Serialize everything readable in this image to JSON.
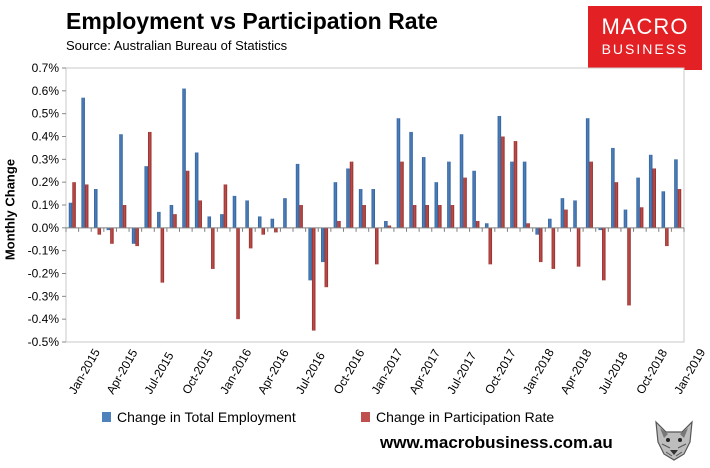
{
  "header": {
    "title": "Employment vs Participation Rate",
    "source": "Source: Australian Bureau of Statistics"
  },
  "logo": {
    "line1": "MACRO",
    "line2": "BUSINESS",
    "color": "#e32024"
  },
  "footer": {
    "url": "www.macrobusiness.com.au"
  },
  "legend": {
    "employment": "Change in Total Employment",
    "participation": "Change in Participation Rate"
  },
  "colors": {
    "employment": "#4f81bd",
    "participation": "#c0504d",
    "plot_border": "#c8c8c8"
  },
  "chart_data": {
    "type": "bar",
    "title": "Employment vs Participation Rate",
    "xlabel": "",
    "ylabel": "Monthly Change",
    "ylim": [
      -0.5,
      0.7
    ],
    "yticks": [
      "0.7%",
      "0.6%",
      "0.5%",
      "0.4%",
      "0.3%",
      "0.2%",
      "0.1%",
      "0.0%",
      "-0.1%",
      "-0.2%",
      "-0.3%",
      "-0.4%",
      "-0.5%"
    ],
    "xtick_labels": [
      "Jan-2015",
      "Apr-2015",
      "Jul-2015",
      "Oct-2015",
      "Jan-2016",
      "Apr-2016",
      "Jul-2016",
      "Oct-2016",
      "Jan-2017",
      "Apr-2017",
      "Jul-2017",
      "Oct-2017",
      "Jan-2018",
      "Apr-2018",
      "Jul-2018",
      "Oct-2018",
      "Jan-2019"
    ],
    "legend_position": "bottom",
    "categories": [
      "Jan-2015",
      "Feb-2015",
      "Mar-2015",
      "Apr-2015",
      "May-2015",
      "Jun-2015",
      "Jul-2015",
      "Aug-2015",
      "Sep-2015",
      "Oct-2015",
      "Nov-2015",
      "Dec-2015",
      "Jan-2016",
      "Feb-2016",
      "Mar-2016",
      "Apr-2016",
      "May-2016",
      "Jun-2016",
      "Jul-2016",
      "Aug-2016",
      "Sep-2016",
      "Oct-2016",
      "Nov-2016",
      "Dec-2016",
      "Jan-2017",
      "Feb-2017",
      "Mar-2017",
      "Apr-2017",
      "May-2017",
      "Jun-2017",
      "Jul-2017",
      "Aug-2017",
      "Sep-2017",
      "Oct-2017",
      "Nov-2017",
      "Dec-2017",
      "Jan-2018",
      "Feb-2018",
      "Mar-2018",
      "Apr-2018",
      "May-2018",
      "Jun-2018",
      "Jul-2018",
      "Aug-2018",
      "Sep-2018",
      "Oct-2018",
      "Nov-2018",
      "Dec-2018",
      "Jan-2019"
    ],
    "series": [
      {
        "name": "Change in Total Employment",
        "values": [
          0.11,
          0.57,
          0.17,
          -0.01,
          0.41,
          -0.07,
          0.27,
          0.07,
          0.1,
          0.61,
          0.33,
          0.05,
          0.06,
          0.14,
          0.12,
          0.05,
          0.04,
          0.13,
          0.28,
          -0.23,
          -0.15,
          0.2,
          0.26,
          0.17,
          0.17,
          0.03,
          0.48,
          0.42,
          0.31,
          0.2,
          0.29,
          0.41,
          0.25,
          0.02,
          0.49,
          0.29,
          0.29,
          -0.03,
          0.04,
          0.13,
          0.12,
          0.48,
          -0.01,
          0.35,
          0.08,
          0.22,
          0.32,
          0.16,
          0.3
        ]
      },
      {
        "name": "Change in Participation Rate",
        "values": [
          0.2,
          0.19,
          -0.03,
          -0.07,
          0.1,
          -0.08,
          0.42,
          -0.24,
          0.06,
          0.25,
          0.12,
          -0.18,
          0.19,
          -0.4,
          -0.09,
          -0.03,
          -0.02,
          0.0,
          0.1,
          -0.45,
          -0.26,
          0.03,
          0.29,
          0.1,
          -0.16,
          0.01,
          0.29,
          0.1,
          0.1,
          0.1,
          0.1,
          0.22,
          0.03,
          -0.16,
          0.4,
          0.38,
          0.02,
          -0.15,
          -0.18,
          0.08,
          -0.17,
          0.29,
          -0.23,
          0.2,
          -0.34,
          0.09,
          0.26,
          -0.08,
          0.17
        ]
      }
    ]
  }
}
